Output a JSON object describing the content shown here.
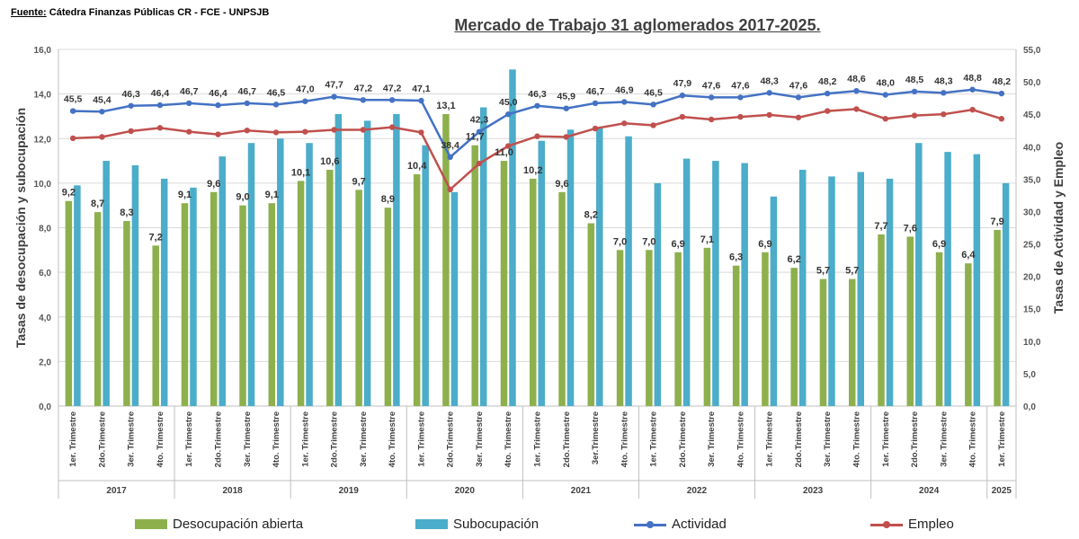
{
  "source": {
    "label": "Fuente:",
    "text": " Cátedra Finanzas Públicas CR - FCE - UNPSJB"
  },
  "chart_data": {
    "type": "bar",
    "title": "Mercado de Trabajo 31 aglomerados 2017-2025.",
    "ylabel": "Tasas de desocupación y subocupación",
    "y2label": "Tasas de Actividad y Empleo",
    "ylim": [
      0,
      16
    ],
    "y2lim": [
      0,
      55
    ],
    "yticks": [
      "0,0",
      "2,0",
      "4,0",
      "6,0",
      "8,0",
      "10,0",
      "12,0",
      "14,0",
      "16,0"
    ],
    "y2ticks": [
      "0,0",
      "5,0",
      "10,0",
      "15,0",
      "20,0",
      "25,0",
      "30,0",
      "35,0",
      "40,0",
      "45,0",
      "50,0",
      "55,0"
    ],
    "grid": true,
    "legend_position": "bottom",
    "categories": [
      "1er. Trimestre",
      "2do.Trimestre",
      "3er. Trimestre",
      "4to. Trimestre",
      "1er. Trimestre",
      "2do.Trimestre",
      "3er. Trimestre",
      "4to. Trimestre",
      "1er. Trimestre",
      "2do.Trimestre",
      "3er. Trimestre",
      "4to. Trimestre",
      "1er. Trimestre",
      "2do.Trimestre",
      "3er. Trimestre",
      "4to. Trimestre",
      "1er. Trimestre",
      "2do.Trimestre",
      "3er.Trimestre",
      "4to. Trimestre",
      "1er. Trimestre",
      "2do.Trimestre",
      "3er. Trimestre",
      "4to. Trimestre",
      "1er. Trimestre",
      "2do.Trimestre",
      "3er. Trimestre",
      "4to. Trimestre",
      "1er. Trimestre",
      "2do.Trimestre",
      "3er. Trimestre",
      "4to. Trimestre",
      "1er. Trimestre"
    ],
    "years": [
      {
        "label": "2017",
        "count": 4
      },
      {
        "label": "2018",
        "count": 4
      },
      {
        "label": "2019",
        "count": 4
      },
      {
        "label": "2020",
        "count": 4
      },
      {
        "label": "2021",
        "count": 4
      },
      {
        "label": "2022",
        "count": 4
      },
      {
        "label": "2023",
        "count": 4
      },
      {
        "label": "2024",
        "count": 4
      },
      {
        "label": "2025",
        "count": 1
      }
    ],
    "series": [
      {
        "name": "Desocupación abierta",
        "type": "bar",
        "axis": "left",
        "color": "#8db04d",
        "values": [
          9.2,
          8.7,
          8.3,
          7.2,
          9.1,
          9.6,
          9.0,
          9.1,
          10.1,
          10.6,
          9.7,
          8.9,
          10.4,
          13.1,
          11.7,
          11.0,
          10.2,
          9.6,
          8.2,
          7.0,
          7.0,
          6.9,
          7.1,
          6.3,
          6.9,
          6.2,
          5.7,
          5.7,
          7.7,
          7.6,
          6.9,
          6.4,
          7.9
        ],
        "labels": [
          "9,2",
          "8,7",
          "8,3",
          "7,2",
          "9,1",
          "9,6",
          "9,0",
          "9,1",
          "10,1",
          "10,6",
          "9,7",
          "8,9",
          "10,4",
          "13,1",
          "11,7",
          "11,0",
          "10,2",
          "9,6",
          "8,2",
          "7,0",
          "7,0",
          "6,9",
          "7,1",
          "6,3",
          "6,9",
          "6,2",
          "5,7",
          "5,7",
          "7,7",
          "7,6",
          "6,9",
          "6,4",
          "7,9"
        ]
      },
      {
        "name": "Subocupación",
        "type": "bar",
        "axis": "left",
        "color": "#4badc9",
        "values": [
          9.9,
          11.0,
          10.8,
          10.2,
          9.8,
          11.2,
          11.8,
          12.0,
          11.8,
          13.1,
          12.8,
          13.1,
          11.7,
          9.6,
          13.4,
          15.1,
          11.9,
          12.4,
          12.5,
          12.1,
          10.0,
          11.1,
          11.0,
          10.9,
          9.4,
          10.6,
          10.3,
          10.5,
          10.2,
          11.8,
          11.4,
          11.3,
          10.0
        ]
      },
      {
        "name": "Actividad",
        "type": "line",
        "axis": "right",
        "color": "#4472c4",
        "values": [
          45.5,
          45.4,
          46.3,
          46.4,
          46.7,
          46.4,
          46.7,
          46.5,
          47.0,
          47.7,
          47.2,
          47.2,
          47.1,
          38.4,
          42.3,
          45.0,
          46.3,
          45.9,
          46.7,
          46.9,
          46.5,
          47.9,
          47.6,
          47.6,
          48.3,
          47.6,
          48.2,
          48.6,
          48.0,
          48.5,
          48.3,
          48.8,
          48.2
        ],
        "labels": [
          "45,5",
          "45,4",
          "46,3",
          "46,4",
          "46,7",
          "46,4",
          "46,7",
          "46,5",
          "47,0",
          "47,7",
          "47,2",
          "47,2",
          "47,1",
          "38,4",
          "42,3",
          "45,0",
          "46,3",
          "45,9",
          "46,7",
          "46,9",
          "46,5",
          "47,9",
          "47,6",
          "47,6",
          "48,3",
          "47,6",
          "48,2",
          "48,6",
          "48,0",
          "48,5",
          "48,3",
          "48,8",
          "48,2"
        ]
      },
      {
        "name": "Empleo",
        "type": "line",
        "axis": "right",
        "color": "#c0504d",
        "values": [
          41.3,
          41.5,
          42.4,
          42.9,
          42.3,
          41.9,
          42.5,
          42.2,
          42.3,
          42.6,
          42.6,
          43.0,
          42.2,
          33.4,
          37.4,
          40.1,
          41.6,
          41.5,
          42.8,
          43.6,
          43.3,
          44.6,
          44.2,
          44.6,
          44.9,
          44.5,
          45.5,
          45.8,
          44.3,
          44.8,
          45.0,
          45.7,
          44.3
        ]
      }
    ]
  },
  "legend": [
    {
      "label": "Desocupación abierta",
      "kind": "bar",
      "color": "#8db04d"
    },
    {
      "label": "Subocupación",
      "kind": "bar",
      "color": "#4badc9"
    },
    {
      "label": "Actividad",
      "kind": "line",
      "color": "#4472c4"
    },
    {
      "label": "Empleo",
      "kind": "line",
      "color": "#c0504d"
    }
  ]
}
